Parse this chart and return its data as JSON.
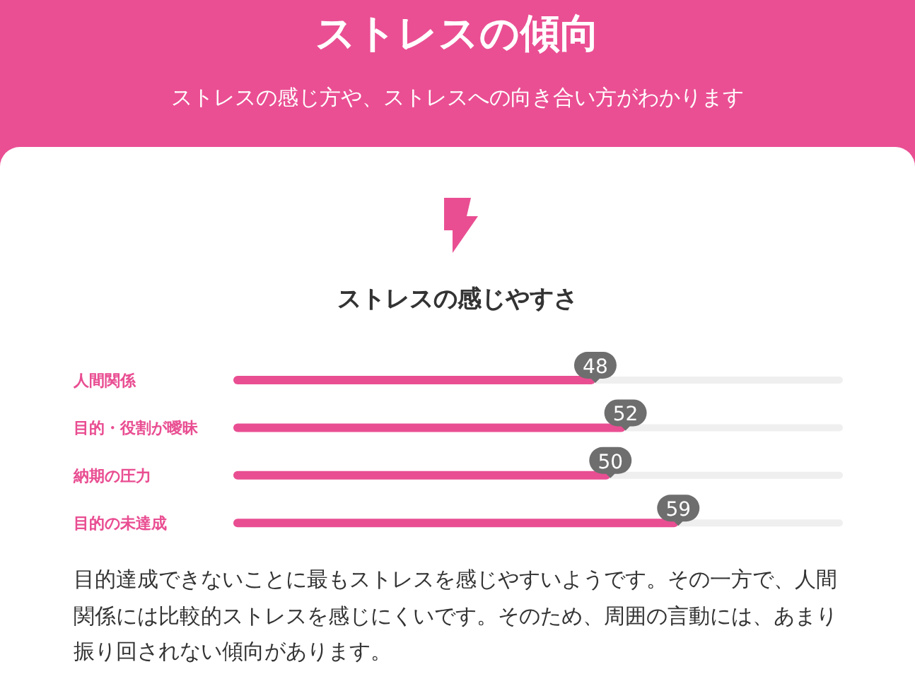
{
  "chart_data": {
    "type": "bar",
    "orientation": "horizontal",
    "title": "ストレスの傾向",
    "subtitle": "ストレスの感じ方や、ストレスへの向き合い方がわかります",
    "categories": [
      "人間関係",
      "目的・役割が曖昧",
      "納期の圧力",
      "目的の未達成"
    ],
    "values": [
      48,
      52,
      50,
      59
    ],
    "color": "#e94e92",
    "data_labels": true,
    "tick_labels": "y",
    "annotations": [
      "ストレスの感じやすさ",
      "目的達成できないことに最もストレスを感じやすいようです。その一方で、人間関係には比較的ストレスを感じにくいです。そのため、周囲の言動には、あまり振り回されない傾向があります。"
    ]
  }
}
